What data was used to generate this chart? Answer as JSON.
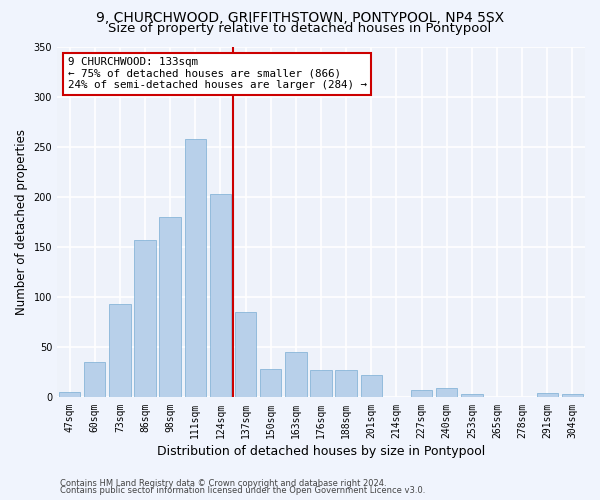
{
  "title_line1": "9, CHURCHWOOD, GRIFFITHSTOWN, PONTYPOOL, NP4 5SX",
  "title_line2": "Size of property relative to detached houses in Pontypool",
  "xlabel": "Distribution of detached houses by size in Pontypool",
  "ylabel": "Number of detached properties",
  "categories": [
    "47sqm",
    "60sqm",
    "73sqm",
    "86sqm",
    "98sqm",
    "111sqm",
    "124sqm",
    "137sqm",
    "150sqm",
    "163sqm",
    "176sqm",
    "188sqm",
    "201sqm",
    "214sqm",
    "227sqm",
    "240sqm",
    "253sqm",
    "265sqm",
    "278sqm",
    "291sqm",
    "304sqm"
  ],
  "values": [
    5,
    35,
    93,
    157,
    180,
    258,
    203,
    85,
    28,
    45,
    27,
    27,
    22,
    0,
    7,
    9,
    3,
    0,
    0,
    4,
    3
  ],
  "bar_color": "#b8d0ea",
  "bar_edge_color": "#7aadd4",
  "vline_x_index": 6.5,
  "vline_color": "#cc0000",
  "annotation_text": "9 CHURCHWOOD: 133sqm\n← 75% of detached houses are smaller (866)\n24% of semi-detached houses are larger (284) →",
  "annotation_box_color": "#ffffff",
  "annotation_box_edge": "#cc0000",
  "footer_line1": "Contains HM Land Registry data © Crown copyright and database right 2024.",
  "footer_line2": "Contains public sector information licensed under the Open Government Licence v3.0.",
  "ylim": [
    0,
    350
  ],
  "yticks": [
    0,
    50,
    100,
    150,
    200,
    250,
    300,
    350
  ],
  "background_color": "#eef2fa",
  "grid_color": "#ffffff",
  "title_fontsize": 10,
  "subtitle_fontsize": 9.5,
  "tick_fontsize": 7,
  "ylabel_fontsize": 8.5,
  "xlabel_fontsize": 9,
  "annotation_fontsize": 7.8,
  "footer_fontsize": 6
}
